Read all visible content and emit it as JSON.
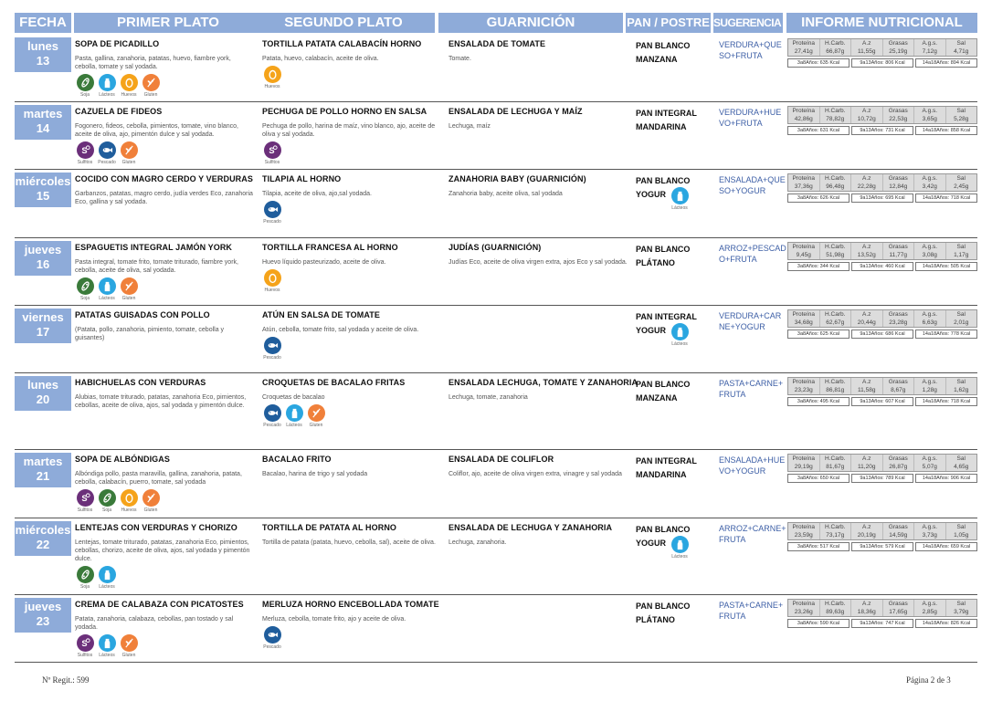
{
  "header": {
    "fecha": "FECHA",
    "primer": "PRIMER PLATO",
    "segundo": "SEGUNDO PLATO",
    "guarnicion": "GUARNICIÓN",
    "pan": "PAN / POSTRE",
    "sugerencia": "SUGERENCIA CENAS",
    "informe": "INFORME NUTRICIONAL"
  },
  "nutrition_labels": [
    "Proteína",
    "H.Carb.",
    "A.z",
    "Grasas",
    "A.g.s.",
    "Sal"
  ],
  "colors": {
    "header_bg": "#8eabd9",
    "suggestion_text": "#3d5fa6",
    "sulfitos": "#6b2f7a",
    "soja": "#3a7a3a",
    "lacteos": "#2aa6e0",
    "huevos": "#f5a31a",
    "gluten": "#f0803a",
    "pescado": "#1f5d9c"
  },
  "days": [
    {
      "day": "lunes",
      "num": "13",
      "primer": {
        "dish": "SOPA DE PICADILLO",
        "ingredients": "Pasta, gallina, zanahoria, patatas, huevo, fiambre york, cebolla, tomate y sal yodada.",
        "allergens": [
          {
            "icon": "soja-icon",
            "label": "Soja"
          },
          {
            "icon": "lacteos-icon",
            "label": "Lácteos"
          },
          {
            "icon": "huevos-icon",
            "label": "Huevos"
          },
          {
            "icon": "gluten-icon",
            "label": "Gluten"
          }
        ]
      },
      "segundo": {
        "dish": "TORTILLA PATATA CALABACÍN HORNO",
        "ingredients": "Patata, huevo, calabacín, aceite de oliva.",
        "allergens": [
          {
            "icon": "huevos-icon",
            "label": "Huevos"
          }
        ]
      },
      "guarnicion": {
        "dish": "ENSALADA DE TOMATE",
        "ingredients": "Tomate.",
        "allergens": []
      },
      "pan": [
        "PAN BLANCO",
        "MANZANA"
      ],
      "pan_allergens": [],
      "sugerencia": "VERDURA+QUE SO+FRUTA",
      "nutrition": [
        "27,41g",
        "66,87g",
        "11,55g",
        "25,19g",
        "7,12g",
        "4,71g"
      ],
      "kcal": [
        "3a8Años: 635 Kcal",
        "9a13Años: 806 Kcal",
        "14a18Años: 894 Kcal"
      ]
    },
    {
      "day": "martes",
      "num": "14",
      "primer": {
        "dish": "CAZUELA DE FIDEOS",
        "ingredients": "Fogonero, fideos, cebolla, pimientos, tomate, vino blanco, aceite de oliva, ajo, pimentón dulce y sal yodada.",
        "allergens": [
          {
            "icon": "sulfitos-icon",
            "label": "Sulfitos"
          },
          {
            "icon": "pescado-icon",
            "label": "Pescado"
          },
          {
            "icon": "gluten-icon",
            "label": "Gluten"
          }
        ]
      },
      "segundo": {
        "dish": "PECHUGA DE POLLO HORNO EN SALSA",
        "ingredients": "Pechuga de pollo, harina de maíz, vino blanco, ajo, aceite de oliva y sal yodada.",
        "allergens": [
          {
            "icon": "sulfitos-icon",
            "label": "Sulfitos"
          }
        ]
      },
      "guarnicion": {
        "dish": "ENSALADA DE LECHUGA Y MAÍZ",
        "ingredients": "Lechuga, maíz",
        "allergens": []
      },
      "pan": [
        "PAN INTEGRAL",
        "MANDARINA"
      ],
      "pan_allergens": [],
      "sugerencia": "VERDURA+HUE VO+FRUTA",
      "nutrition": [
        "42,86g",
        "78,82g",
        "10,72g",
        "22,53g",
        "3,65g",
        "5,28g"
      ],
      "kcal": [
        "3a8Años: 631 Kcal",
        "9a13Años: 731 Kcal",
        "14a18Años: 858 Kcal"
      ]
    },
    {
      "day": "miércoles",
      "num": "15",
      "primer": {
        "dish": "COCIDO CON MAGRO CERDO Y VERDURAS",
        "ingredients": "Garbanzos, patatas, magro cerdo, judía verdes Eco, zanahoria Eco, gallina y sal yodada.",
        "allergens": []
      },
      "segundo": {
        "dish": "TILAPIA AL HORNO",
        "ingredients": "Tilapia, aceite de oliva, ajo,sal yodada.",
        "allergens": [
          {
            "icon": "pescado-icon",
            "label": "Pescado"
          }
        ]
      },
      "guarnicion": {
        "dish": "ZANAHORIA BABY (GUARNICIÓN)",
        "ingredients": "Zanahoria baby, aceite oliva, sal yodada",
        "allergens": []
      },
      "pan": [
        "PAN BLANCO",
        "YOGUR"
      ],
      "pan_allergens": [
        {
          "icon": "lacteos-icon",
          "label": "Lácteos"
        }
      ],
      "sugerencia": "ENSALADA+QUE SO+YOGUR",
      "nutrition": [
        "37,36g",
        "96,48g",
        "22,28g",
        "12,84g",
        "3,42g",
        "2,45g"
      ],
      "kcal": [
        "3a8Años: 626 Kcal",
        "9a13Años: 695 Kcal",
        "14a18Años: 718 Kcal"
      ]
    },
    {
      "day": "jueves",
      "num": "16",
      "primer": {
        "dish": "ESPAGUETIS INTEGRAL JAMÓN YORK",
        "ingredients": "Pasta integral, tomate frito, tomate triturado, fiambre york, cebolla, aceite de oliva, sal yodada.",
        "allergens": [
          {
            "icon": "soja-icon",
            "label": "Soja"
          },
          {
            "icon": "lacteos-icon",
            "label": "Lácteos"
          },
          {
            "icon": "gluten-icon",
            "label": "Gluten"
          }
        ]
      },
      "segundo": {
        "dish": "TORTILLA FRANCESA AL HORNO",
        "ingredients": "Huevo líquido pasteurizado, aceite de oliva.",
        "allergens": [
          {
            "icon": "huevos-icon",
            "label": "Huevos"
          }
        ]
      },
      "guarnicion": {
        "dish": "JUDÍAS (GUARNICIÓN)",
        "ingredients": "Judías Eco, aceite de oliva virgen extra, ajos Eco y sal yodada.",
        "allergens": []
      },
      "pan": [
        "PAN BLANCO",
        "PLÁTANO"
      ],
      "pan_allergens": [],
      "sugerencia": "ARROZ+PESCAD O+FRUTA",
      "nutrition": [
        "9,45g",
        "51,98g",
        "13,52g",
        "11,77g",
        "3,08g",
        "1,17g"
      ],
      "kcal": [
        "3a8Años: 344 Kcal",
        "9a13Años: 460 Kcal",
        "14a18Años: 505 Kcal"
      ]
    },
    {
      "day": "viernes",
      "num": "17",
      "primer": {
        "dish": "PATATAS GUISADAS CON POLLO",
        "ingredients": "(Patata, pollo, zanahoria, pimiento, tomate, cebolla y guisantes)",
        "allergens": []
      },
      "segundo": {
        "dish": "ATÚN EN SALSA DE TOMATE",
        "ingredients": "Atún, cebolla, tomate frito, sal yodada y aceite de oliva.",
        "allergens": [
          {
            "icon": "pescado-icon",
            "label": "Pescado"
          }
        ]
      },
      "guarnicion": {
        "dish": "",
        "ingredients": "",
        "allergens": []
      },
      "pan": [
        "PAN INTEGRAL",
        "YOGUR"
      ],
      "pan_allergens": [
        {
          "icon": "lacteos-icon",
          "label": "Lácteos"
        }
      ],
      "sugerencia": "VERDURA+CAR NE+YOGUR",
      "nutrition": [
        "34,68g",
        "62,67g",
        "20,44g",
        "23,28g",
        "6,63g",
        "2,01g"
      ],
      "kcal": [
        "3a8Años: 625 Kcal",
        "9a13Años: 686 Kcal",
        "14a18Años: 778 Kcal"
      ]
    },
    {
      "day": "lunes",
      "num": "20",
      "primer": {
        "dish": "HABICHUELAS CON VERDURAS",
        "ingredients": "Alubias, tomate triturado, patatas, zanahoria Eco, pimientos, cebollas, aceite de oliva, ajos, sal yodada y pimentón dulce.",
        "allergens": []
      },
      "segundo": {
        "dish": "CROQUETAS DE BACALAO FRITAS",
        "ingredients": "Croquetas de bacalao",
        "allergens": [
          {
            "icon": "pescado-icon",
            "label": "Pescado"
          },
          {
            "icon": "lacteos-icon",
            "label": "Lácteos"
          },
          {
            "icon": "gluten-icon",
            "label": "Gluten"
          }
        ]
      },
      "guarnicion": {
        "dish": "ENSALADA LECHUGA, TOMATE Y ZANAHORIA",
        "ingredients": "Lechuga, tomate, zanahoria",
        "allergens": []
      },
      "pan": [
        "PAN BLANCO",
        "MANZANA"
      ],
      "pan_allergens": [],
      "sugerencia": "PASTA+CARNE+ FRUTA",
      "nutrition": [
        "23,23g",
        "86,81g",
        "11,58g",
        "8,67g",
        "1,28g",
        "1,62g"
      ],
      "kcal": [
        "3a8Años: 495 Kcal",
        "9a13Años: 607 Kcal",
        "14a18Años: 718 Kcal"
      ]
    },
    {
      "day": "martes",
      "num": "21",
      "primer": {
        "dish": "SOPA DE ALBÓNDIGAS",
        "ingredients": "Albóndiga pollo, pasta maravilla, gallina, zanahoria, patata, cebolla, calabacín, puerro, tomate, sal yodada",
        "allergens": [
          {
            "icon": "sulfitos-icon",
            "label": "Sulfitos"
          },
          {
            "icon": "soja-icon",
            "label": "Soja"
          },
          {
            "icon": "huevos-icon",
            "label": "Huevos"
          },
          {
            "icon": "gluten-icon",
            "label": "Gluten"
          }
        ]
      },
      "segundo": {
        "dish": "BACALAO FRITO",
        "ingredients": "Bacalao, harina de trigo y sal yodada",
        "allergens": []
      },
      "guarnicion": {
        "dish": "ENSALADA DE COLIFLOR",
        "ingredients": "Coliflor, ajo, aceite de oliva virgen extra, vinagre y sal yodada",
        "allergens": []
      },
      "pan": [
        "PAN INTEGRAL",
        "MANDARINA"
      ],
      "pan_allergens": [],
      "sugerencia": "ENSALADA+HUE VO+YOGUR",
      "nutrition": [
        "29,19g",
        "81,67g",
        "11,20g",
        "26,87g",
        "5,07g",
        "4,65g"
      ],
      "kcal": [
        "3a8Años: 650 Kcal",
        "9a13Años: 789 Kcal",
        "14a18Años: 906 Kcal"
      ]
    },
    {
      "day": "miércoles",
      "num": "22",
      "primer": {
        "dish": "LENTEJAS CON VERDURAS Y CHORIZO",
        "ingredients": "Lentejas, tomate triturado, patatas, zanahoria Eco, pimientos, cebollas, chorizo, aceite de oliva, ajos, sal yodada y pimentón dulce.",
        "allergens": [
          {
            "icon": "soja-icon",
            "label": "Soja"
          },
          {
            "icon": "lacteos-icon",
            "label": "Lácteos"
          }
        ]
      },
      "segundo": {
        "dish": "TORTILLA DE PATATA AL HORNO",
        "ingredients": "Tortilla de patata (patata, huevo, cebolla, sal), aceite de oliva.",
        "allergens": []
      },
      "guarnicion": {
        "dish": "ENSALADA DE LECHUGA Y ZANAHORIA",
        "ingredients": "Lechuga, zanahoria.",
        "allergens": []
      },
      "pan": [
        "PAN BLANCO",
        "YOGUR"
      ],
      "pan_allergens": [
        {
          "icon": "lacteos-icon",
          "label": "Lácteos"
        }
      ],
      "sugerencia": "ARROZ+CARNE+ FRUTA",
      "nutrition": [
        "23,59g",
        "73,17g",
        "20,19g",
        "14,59g",
        "3,73g",
        "1,05g"
      ],
      "kcal": [
        "3a8Años: 517 Kcal",
        "9a13Años: 579 Kcal",
        "14a18Años: 659 Kcal"
      ]
    },
    {
      "day": "jueves",
      "num": "23",
      "primer": {
        "dish": "CREMA DE CALABAZA CON PICATOSTES",
        "ingredients": "Patata, zanahoria, calabaza, cebollas, pan tostado y sal yodada.",
        "allergens": [
          {
            "icon": "sulfitos-icon",
            "label": "Sulfitos"
          },
          {
            "icon": "lacteos-icon",
            "label": "Lácteos"
          },
          {
            "icon": "gluten-icon",
            "label": "Gluten"
          }
        ]
      },
      "segundo": {
        "dish": "MERLUZA HORNO ENCEBOLLADA TOMATE",
        "ingredients": "Merluza, cebolla, tomate frito, ajo y aceite de oliva.",
        "allergens": [
          {
            "icon": "pescado-icon",
            "label": "Pescado"
          }
        ]
      },
      "guarnicion": {
        "dish": "",
        "ingredients": "",
        "allergens": []
      },
      "pan": [
        "PAN BLANCO",
        "PLÁTANO"
      ],
      "pan_allergens": [],
      "sugerencia": "PASTA+CARNE+ FRUTA",
      "nutrition": [
        "23,26g",
        "89,63g",
        "18,36g",
        "17,65g",
        "2,85g",
        "3,79g"
      ],
      "kcal": [
        "3a8Años: 590 Kcal",
        "9a13Años: 747 Kcal",
        "14a18Años: 826 Kcal"
      ]
    }
  ],
  "footer": {
    "regit": "Nº Regit.:  599",
    "page": "Página 2 de 3"
  }
}
